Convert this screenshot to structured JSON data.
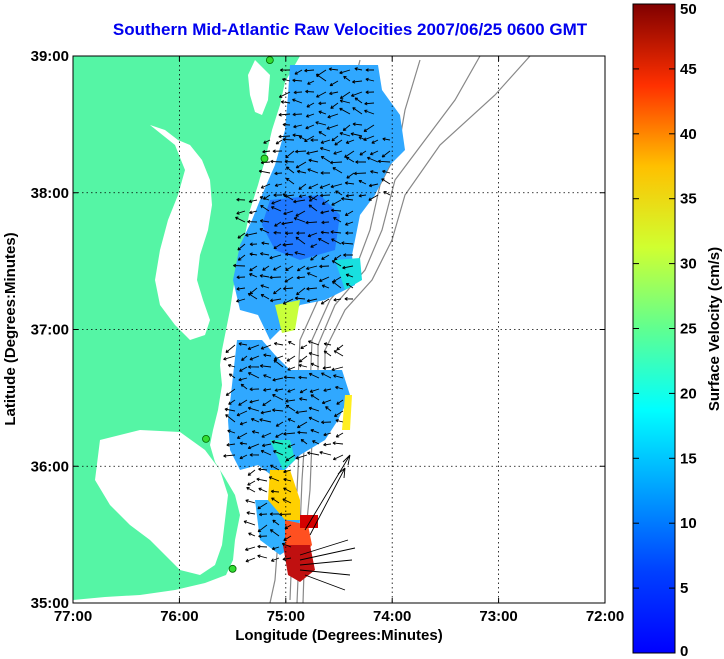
{
  "title": "Southern Mid-Atlantic Raw Velocities 2007/06/25 0600 GMT",
  "x_axis": {
    "label": "Longitude (Degrees:Minutes)",
    "ticks": [
      "77:00",
      "76:00",
      "75:00",
      "74:00",
      "73:00",
      "72:00"
    ]
  },
  "y_axis": {
    "label": "Latitude (Degrees:Minutes)",
    "ticks": [
      "39:00",
      "38:00",
      "37:00",
      "36:00",
      "35:00"
    ]
  },
  "colorbar": {
    "label": "Surface Velocity (cm/s)",
    "ticks": [
      "50",
      "45",
      "40",
      "35",
      "30",
      "25",
      "20",
      "15",
      "10",
      "5",
      "0"
    ],
    "min": 0,
    "max": 50,
    "colormap": "jet"
  },
  "colors": {
    "land": "#55f5a5",
    "title": "#0000ee",
    "low_speed": "#3aa0ff",
    "high_speed": "#8b0000"
  },
  "map": {
    "extent": {
      "lon_min": -77,
      "lon_max": -72,
      "lat_min": 35,
      "lat_max": 39
    },
    "grid": "dotted",
    "stations": [
      {
        "lon": -75.15,
        "lat": 38.97
      },
      {
        "lon": -75.2,
        "lat": 38.25
      },
      {
        "lon": -75.75,
        "lat": 36.2
      },
      {
        "lon": -75.5,
        "lat": 35.25
      }
    ]
  }
}
